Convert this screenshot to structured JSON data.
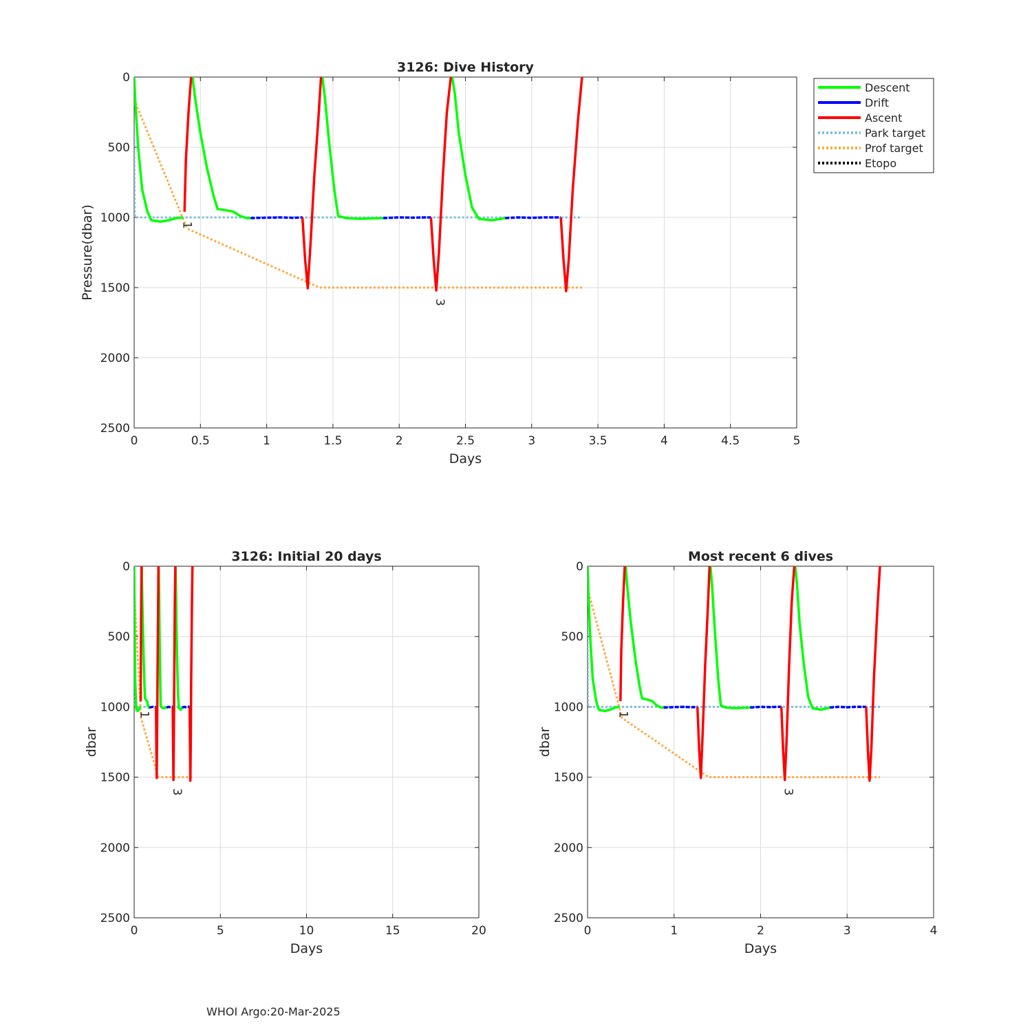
{
  "footer": "WHOI Argo:20-Mar-2025",
  "colors": {
    "Descent": "#00ff00",
    "Drift": "#0000ff",
    "Ascent": "#ff0000",
    "Park target": "#7fbfdf",
    "Prof target": "#ffa93f",
    "Etopo": "#000000"
  },
  "legend": {
    "entries": [
      {
        "name": "Descent",
        "style": "solid"
      },
      {
        "name": "Drift",
        "style": "solid"
      },
      {
        "name": "Ascent",
        "style": "solid"
      },
      {
        "name": "Park target",
        "style": "dotted"
      },
      {
        "name": "Prof target",
        "style": "dotted"
      },
      {
        "name": "Etopo",
        "style": "dotted"
      }
    ],
    "placement": "outside top-right"
  },
  "chart_data": [
    {
      "type": "line",
      "title": "3126: Dive History",
      "xlabel": "Days",
      "ylabel": "Pressure(dbar)",
      "xlim": [
        0,
        5
      ],
      "ylim": [
        0,
        2500
      ],
      "y_reversed": true,
      "grid": true,
      "xticks": [
        "0",
        "0.5",
        "1",
        "1.5",
        "2",
        "2.5",
        "3",
        "3.5",
        "4",
        "4.5",
        "5"
      ],
      "yticks": [
        "0",
        "500",
        "1000",
        "1500",
        "2000",
        "2500"
      ],
      "legend": true
    },
    {
      "type": "line",
      "title": "3126: Initial 20 days",
      "xlabel": "Days",
      "ylabel": "dbar",
      "xlim": [
        0,
        20
      ],
      "ylim": [
        0,
        2500
      ],
      "y_reversed": true,
      "grid": true,
      "xticks": [
        "0",
        "5",
        "10",
        "15",
        "20"
      ],
      "yticks": [
        "0",
        "500",
        "1000",
        "1500",
        "2000",
        "2500"
      ]
    },
    {
      "type": "line",
      "title": "Most recent 6 dives",
      "xlabel": "Days",
      "ylabel": "dbar",
      "xlim": [
        0,
        4
      ],
      "ylim": [
        0,
        2500
      ],
      "y_reversed": true,
      "grid": true,
      "xticks": [
        "0",
        "1",
        "2",
        "3",
        "4"
      ],
      "yticks": [
        "0",
        "500",
        "1000",
        "1500",
        "2000",
        "2500"
      ]
    }
  ],
  "series": {
    "descent": [
      [
        [
          0,
          0
        ],
        [
          0.01,
          200
        ],
        [
          0.03,
          500
        ],
        [
          0.06,
          800
        ],
        [
          0.1,
          960
        ],
        [
          0.13,
          1020
        ],
        [
          0.2,
          1030
        ],
        [
          0.26,
          1020
        ],
        [
          0.32,
          1005
        ],
        [
          0.37,
          1000
        ]
      ],
      [
        [
          0.44,
          0
        ],
        [
          0.46,
          150
        ],
        [
          0.5,
          400
        ],
        [
          0.55,
          650
        ],
        [
          0.6,
          850
        ],
        [
          0.63,
          940
        ],
        [
          0.7,
          950
        ],
        [
          0.75,
          960
        ],
        [
          0.8,
          990
        ],
        [
          0.85,
          1005
        ],
        [
          0.88,
          1005
        ]
      ],
      [
        [
          1.42,
          0
        ],
        [
          1.44,
          150
        ],
        [
          1.47,
          450
        ],
        [
          1.51,
          800
        ],
        [
          1.54,
          990
        ],
        [
          1.6,
          1005
        ],
        [
          1.7,
          1010
        ],
        [
          1.88,
          1005
        ]
      ],
      [
        [
          2.4,
          0
        ],
        [
          2.42,
          120
        ],
        [
          2.45,
          400
        ],
        [
          2.5,
          700
        ],
        [
          2.55,
          930
        ],
        [
          2.6,
          1010
        ],
        [
          2.7,
          1020
        ],
        [
          2.8,
          1005
        ]
      ]
    ],
    "drift": [
      [
        [
          0.88,
          1005
        ],
        [
          1.0,
          1002
        ],
        [
          1.1,
          1000
        ],
        [
          1.2,
          1003
        ],
        [
          1.27,
          1000
        ]
      ],
      [
        [
          1.88,
          1005
        ],
        [
          2.0,
          1000
        ],
        [
          2.1,
          1002
        ],
        [
          2.2,
          1000
        ],
        [
          2.24,
          1000
        ]
      ],
      [
        [
          2.8,
          1005
        ],
        [
          2.9,
          1000
        ],
        [
          3.0,
          1003
        ],
        [
          3.1,
          1000
        ],
        [
          3.22,
          1000
        ]
      ]
    ],
    "ascent": [
      [
        [
          0.38,
          960
        ],
        [
          0.39,
          600
        ],
        [
          0.41,
          250
        ],
        [
          0.43,
          0
        ]
      ],
      [
        [
          1.27,
          1000
        ],
        [
          1.29,
          1300
        ],
        [
          1.31,
          1505
        ],
        [
          1.33,
          1200
        ],
        [
          1.36,
          700
        ],
        [
          1.39,
          300
        ],
        [
          1.41,
          0
        ]
      ],
      [
        [
          2.24,
          1000
        ],
        [
          2.26,
          1300
        ],
        [
          2.28,
          1520
        ],
        [
          2.3,
          1250
        ],
        [
          2.33,
          700
        ],
        [
          2.36,
          250
        ],
        [
          2.39,
          0
        ]
      ],
      [
        [
          3.22,
          1000
        ],
        [
          3.24,
          1300
        ],
        [
          3.26,
          1525
        ],
        [
          3.28,
          1300
        ],
        [
          3.31,
          800
        ],
        [
          3.35,
          300
        ],
        [
          3.38,
          0
        ]
      ]
    ],
    "park_target": [
      [
        0,
        420
      ],
      [
        0.005,
        1000
      ],
      [
        3.38,
        1000
      ]
    ],
    "prof_target": [
      [
        0,
        160
      ],
      [
        0.4,
        1080
      ],
      [
        1.4,
        1500
      ],
      [
        3.38,
        1500
      ]
    ],
    "annotations": [
      {
        "label": "1",
        "x": 0.37,
        "y": 1055
      },
      {
        "label": "3",
        "x": 2.28,
        "y": 1605
      }
    ]
  }
}
